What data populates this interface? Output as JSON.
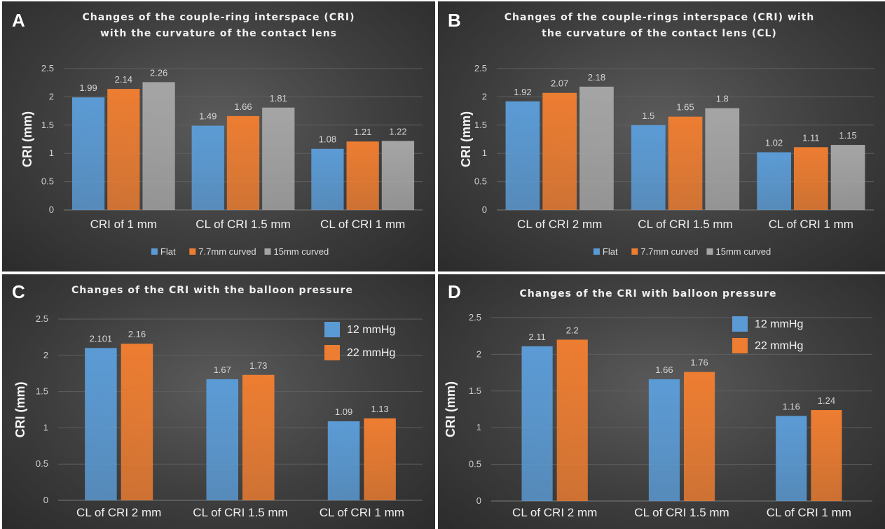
{
  "colors": {
    "blue": "#5b9bd5",
    "orange": "#ed7d31",
    "gray": "#a5a5a5"
  },
  "chart_data": [
    {
      "type": "bar",
      "panel_letter": "A",
      "title_lines": [
        "Changes of the couple-ring interspace (CRI)",
        "with the curvature of the contact lens"
      ],
      "ylabel": "CRI (mm)",
      "ylim": [
        0,
        2.5
      ],
      "yticks": [
        "0",
        "0.5",
        "1",
        "1.5",
        "2",
        "2.5"
      ],
      "categories": [
        "CRI of 1 mm",
        "CL of CRI 1.5 mm",
        "CL of CRI 1 mm"
      ],
      "legend_position": "bottom",
      "series": [
        {
          "name": "Flat",
          "color": "#5b9bd5",
          "values": [
            1.99,
            1.49,
            1.08
          ],
          "labels": [
            "1.99",
            "1.49",
            "1.08"
          ]
        },
        {
          "name": "7.7mm curved",
          "color": "#ed7d31",
          "values": [
            2.14,
            1.66,
            1.21
          ],
          "labels": [
            "2.14",
            "1.66",
            "1.21"
          ]
        },
        {
          "name": "15mm curved",
          "color": "#a5a5a5",
          "values": [
            2.26,
            1.81,
            1.22
          ],
          "labels": [
            "2.26",
            "1.81",
            "1.22"
          ]
        }
      ]
    },
    {
      "type": "bar",
      "panel_letter": "B",
      "title_lines": [
        "Changes of the couple-rings interspace (CRI) with",
        "the curvature of the contact lens (CL)"
      ],
      "ylabel": "CRI (mm)",
      "ylim": [
        0,
        2.5
      ],
      "yticks": [
        "0",
        "0.5",
        "1",
        "1.5",
        "2",
        "2.5"
      ],
      "categories": [
        "CL of CRI 2 mm",
        "CL of CRI 1.5 mm",
        "CL of CRI 1 mm"
      ],
      "legend_position": "bottom",
      "series": [
        {
          "name": "Flat",
          "color": "#5b9bd5",
          "values": [
            1.92,
            1.5,
            1.02
          ],
          "labels": [
            "1.92",
            "1.5",
            "1.02"
          ]
        },
        {
          "name": "7.7mm curved",
          "color": "#ed7d31",
          "values": [
            2.07,
            1.65,
            1.11
          ],
          "labels": [
            "2.07",
            "1.65",
            "1.11"
          ]
        },
        {
          "name": "15mm curved",
          "color": "#a5a5a5",
          "values": [
            2.18,
            1.8,
            1.15
          ],
          "labels": [
            "2.18",
            "1.8",
            "1.15"
          ]
        }
      ]
    },
    {
      "type": "bar",
      "panel_letter": "C",
      "title_lines": [
        "Changes of the CRI with the balloon pressure"
      ],
      "ylabel": "CRI (mm)",
      "ylim": [
        0,
        2.5
      ],
      "yticks": [
        "0",
        "0.5",
        "1",
        "1.5",
        "2",
        "2.5"
      ],
      "categories": [
        "CL of CRI 2 mm",
        "CL of CRI 1.5 mm",
        "CL of CRI 1 mm"
      ],
      "legend_position": "top-right",
      "series": [
        {
          "name": "12 mmHg",
          "color": "#5b9bd5",
          "values": [
            2.101,
            1.67,
            1.09
          ],
          "labels": [
            "2.101",
            "1.67",
            "1.09"
          ]
        },
        {
          "name": "22 mmHg",
          "color": "#ed7d31",
          "values": [
            2.16,
            1.73,
            1.13
          ],
          "labels": [
            "2.16",
            "1.73",
            "1.13"
          ]
        }
      ]
    },
    {
      "type": "bar",
      "panel_letter": "D",
      "title_lines": [
        "Changes of the CRI with balloon pressure"
      ],
      "ylabel": "CRI (mm)",
      "ylim": [
        0,
        2.5
      ],
      "yticks": [
        "0",
        "0.5",
        "1",
        "1.5",
        "2",
        "2.5"
      ],
      "categories": [
        "CL of CRI 2 mm",
        "CL of CRI 1.5 mm",
        "CL of CRI 1 mm"
      ],
      "legend_position": "top-right",
      "series": [
        {
          "name": "12 mmHg",
          "color": "#5b9bd5",
          "values": [
            2.11,
            1.66,
            1.16
          ],
          "labels": [
            "2.11",
            "1.66",
            "1.16"
          ]
        },
        {
          "name": "22 mmHg",
          "color": "#ed7d31",
          "values": [
            2.2,
            1.76,
            1.24
          ],
          "labels": [
            "2.2",
            "1.76",
            "1.24"
          ]
        }
      ]
    }
  ]
}
